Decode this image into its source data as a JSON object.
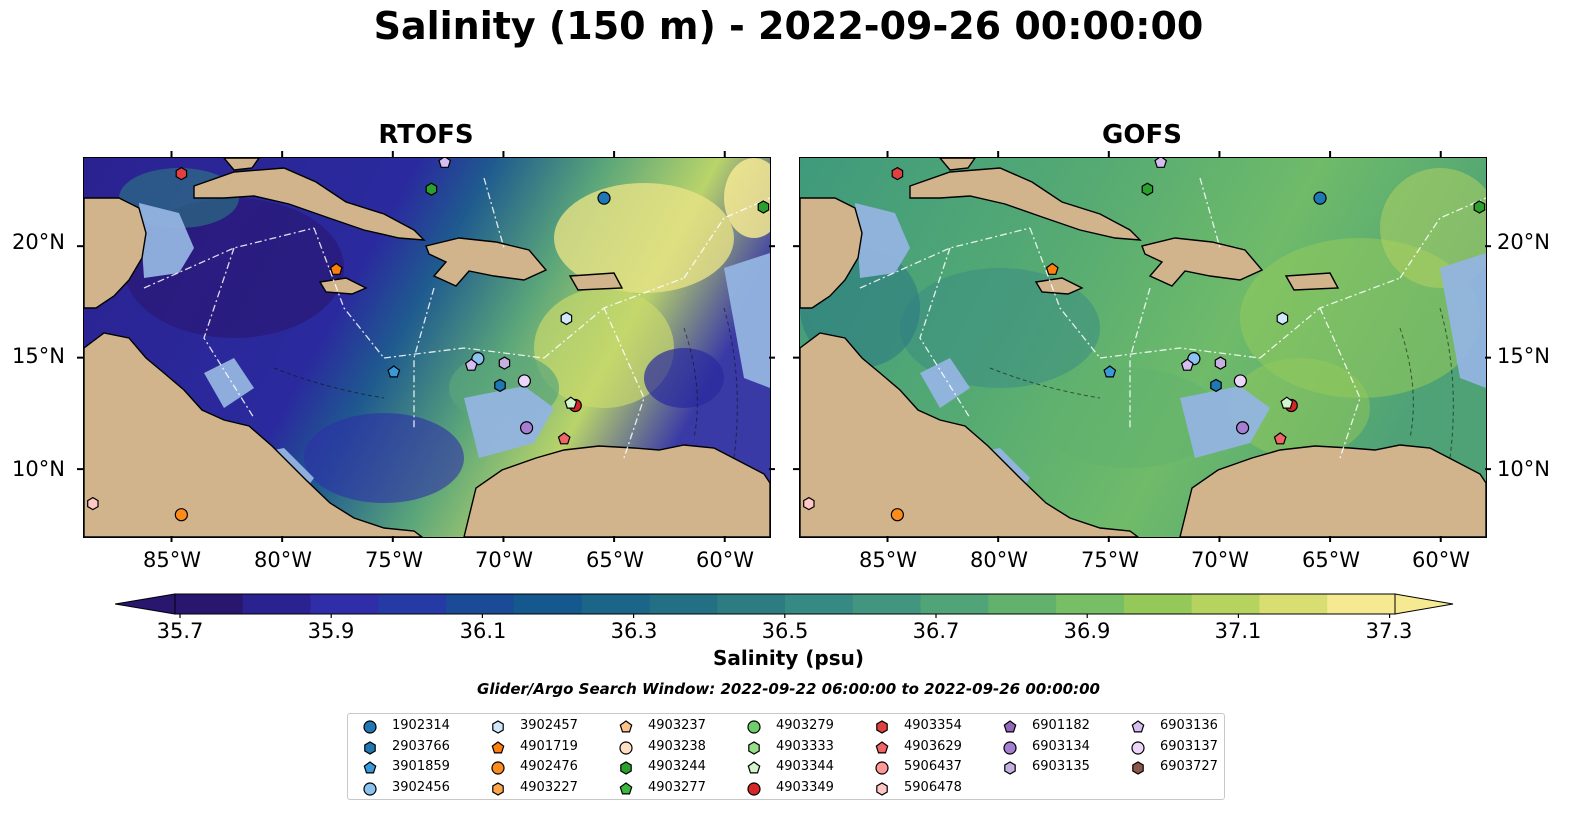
{
  "figure": {
    "title": "Salinity (150 m) - 2022-09-26 00:00:00",
    "search_window": "Glider/Argo Search Window: 2022-09-22 06:00:00 to 2022-09-26 00:00:00"
  },
  "panels": [
    {
      "title": "RTOFS",
      "background_scheme": "rtofs"
    },
    {
      "title": "GOFS",
      "background_scheme": "gofs"
    }
  ],
  "map": {
    "lon_range": [
      -89,
      -58
    ],
    "lat_range": [
      7,
      24
    ],
    "lat_ticks": [
      "20°N",
      "15°N",
      "10°N"
    ],
    "lat_values": [
      20,
      15,
      10
    ],
    "lon_ticks": [
      "85°W",
      "80°W",
      "75°W",
      "70°W",
      "65°W",
      "60°W"
    ],
    "lon_values": [
      -85,
      -80,
      -75,
      -70,
      -65,
      -60
    ],
    "land_color": "#d2b48c",
    "shelf_color": "#93b4e0"
  },
  "colorbar": {
    "label": "Salinity (psu)",
    "ticks": [
      "35.7",
      "35.9",
      "36.1",
      "36.3",
      "36.5",
      "36.7",
      "36.9",
      "37.1",
      "37.3"
    ],
    "colors": [
      "#29166f",
      "#2b2291",
      "#2f2ea8",
      "#263aa5",
      "#1b4a96",
      "#15588e",
      "#1a6588",
      "#237084",
      "#2d7c82",
      "#378983",
      "#42957e",
      "#50a477",
      "#62b26e",
      "#78be64",
      "#94c959",
      "#b7d35f",
      "#d9de72",
      "#f5e992"
    ]
  },
  "legend": {
    "columns": [
      [
        {
          "id": "1902314",
          "color": "#1f77b4",
          "marker": "circle"
        },
        {
          "id": "2903766",
          "color": "#1f77b4",
          "marker": "hexagon"
        },
        {
          "id": "3901859",
          "color": "#3a9ad9",
          "marker": "pentagon"
        },
        {
          "id": "3902456",
          "color": "#8cc3ee",
          "marker": "circle"
        }
      ],
      [
        {
          "id": "3902457",
          "color": "#cfe8fa",
          "marker": "hexagon"
        },
        {
          "id": "4901719",
          "color": "#ff7f0e",
          "marker": "pentagon"
        },
        {
          "id": "4902476",
          "color": "#ff8c1a",
          "marker": "circle"
        },
        {
          "id": "4903227",
          "color": "#ffa64d",
          "marker": "hexagon"
        }
      ],
      [
        {
          "id": "4903237",
          "color": "#fdc38a",
          "marker": "pentagon"
        },
        {
          "id": "4903238",
          "color": "#ffe0c4",
          "marker": "circle"
        },
        {
          "id": "4903244",
          "color": "#2ca02c",
          "marker": "hexagon"
        },
        {
          "id": "4903277",
          "color": "#3cb83c",
          "marker": "pentagon"
        }
      ],
      [
        {
          "id": "4903279",
          "color": "#6ccf6c",
          "marker": "circle"
        },
        {
          "id": "4903333",
          "color": "#98df8a",
          "marker": "hexagon"
        },
        {
          "id": "4903344",
          "color": "#d2f5cc",
          "marker": "pentagon"
        },
        {
          "id": "4903349",
          "color": "#d62728",
          "marker": "circle"
        }
      ],
      [
        {
          "id": "4903354",
          "color": "#e0403f",
          "marker": "hexagon"
        },
        {
          "id": "4903629",
          "color": "#f06565",
          "marker": "pentagon"
        },
        {
          "id": "5906437",
          "color": "#ff9896",
          "marker": "circle"
        },
        {
          "id": "5906478",
          "color": "#ffc8c6",
          "marker": "hexagon"
        }
      ],
      [
        {
          "id": "6901182",
          "color": "#9467bd",
          "marker": "pentagon"
        },
        {
          "id": "6903134",
          "color": "#a77fd0",
          "marker": "circle"
        },
        {
          "id": "6903135",
          "color": "#c5b0e0",
          "marker": "hexagon"
        }
      ],
      [
        {
          "id": "6903136",
          "color": "#d6bdf2",
          "marker": "pentagon"
        },
        {
          "id": "6903137",
          "color": "#ecd7fb",
          "marker": "circle"
        },
        {
          "id": "6903727",
          "color": "#8c564b",
          "marker": "hexagon"
        }
      ]
    ]
  },
  "platform_positions": [
    {
      "id": "4903354",
      "lon": -84.6,
      "lat": 23.3
    },
    {
      "id": "6903136",
      "lon": -72.7,
      "lat": 23.8
    },
    {
      "id": "4903244",
      "lon": -73.3,
      "lat": 22.6
    },
    {
      "id": "1902314",
      "lon": -65.5,
      "lat": 22.2
    },
    {
      "id": "4903244",
      "lon": -58.3,
      "lat": 21.8
    },
    {
      "id": "4901719",
      "lon": -77.6,
      "lat": 19.0
    },
    {
      "id": "3902457",
      "lon": -67.2,
      "lat": 16.8
    },
    {
      "id": "3902456",
      "lon": -71.2,
      "lat": 15.0
    },
    {
      "id": "6903135",
      "lon": -70.0,
      "lat": 14.8
    },
    {
      "id": "6903136",
      "lon": -71.5,
      "lat": 14.7
    },
    {
      "id": "3901859",
      "lon": -75.0,
      "lat": 14.4
    },
    {
      "id": "6903137",
      "lon": -69.1,
      "lat": 14.0
    },
    {
      "id": "2903766",
      "lon": -70.2,
      "lat": 13.8
    },
    {
      "id": "4903349",
      "lon": -66.8,
      "lat": 12.9
    },
    {
      "id": "4903344",
      "lon": -67.0,
      "lat": 13.0
    },
    {
      "id": "6903134",
      "lon": -69.0,
      "lat": 11.9
    },
    {
      "id": "4903629",
      "lon": -67.3,
      "lat": 11.4
    },
    {
      "id": "4902476",
      "lon": -84.6,
      "lat": 8.0
    },
    {
      "id": "5906478",
      "lon": -88.6,
      "lat": 8.5
    }
  ]
}
